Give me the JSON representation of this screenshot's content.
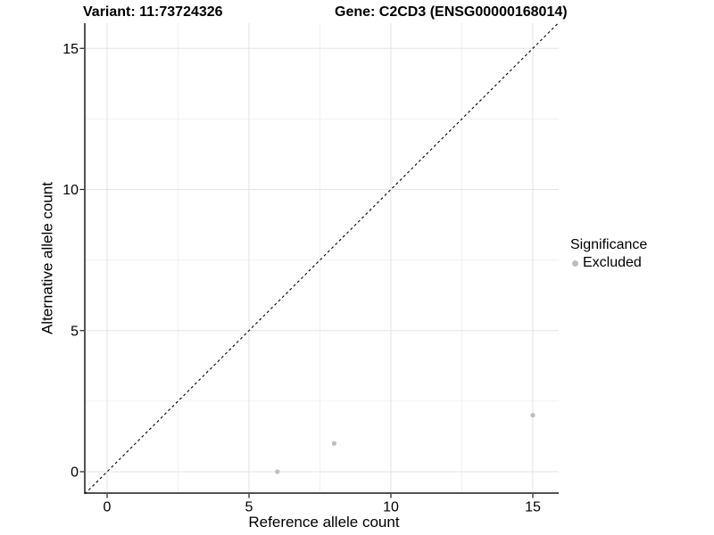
{
  "chart_data": {
    "type": "scatter",
    "title_left": "Variant: 11:73724326",
    "title_right": "Gene: C2CD3 (ENSG00000168014)",
    "xlabel": "Reference allele count",
    "ylabel": "Alternative allele count",
    "xlim": [
      -0.8,
      15.9
    ],
    "ylim": [
      -0.8,
      15.9
    ],
    "xticks": [
      0,
      5,
      10,
      15
    ],
    "yticks": [
      0,
      5,
      10,
      15
    ],
    "minor_xticks": [
      2.5,
      7.5,
      12.5
    ],
    "minor_yticks": [
      2.5,
      7.5,
      12.5
    ],
    "grid": "major+minor",
    "reference_line": {
      "type": "identity",
      "equation": "y = x",
      "style": "dashed"
    },
    "series": [
      {
        "name": "Excluded",
        "color": "#bebebe",
        "points": [
          [
            6,
            0
          ],
          [
            8,
            1
          ],
          [
            15,
            2
          ]
        ]
      }
    ],
    "legend": {
      "title": "Significance",
      "position": "right",
      "entries": [
        {
          "label": "Excluded",
          "color": "#bebebe"
        }
      ]
    }
  },
  "colors": {
    "background": "#ffffff",
    "grid_major": "#e3e3e3",
    "grid_minor": "#f1f1f1",
    "axis_line": "#1a1a1a",
    "tick_label": "#000000",
    "reference_line": "#000000",
    "point": "#bebebe"
  }
}
